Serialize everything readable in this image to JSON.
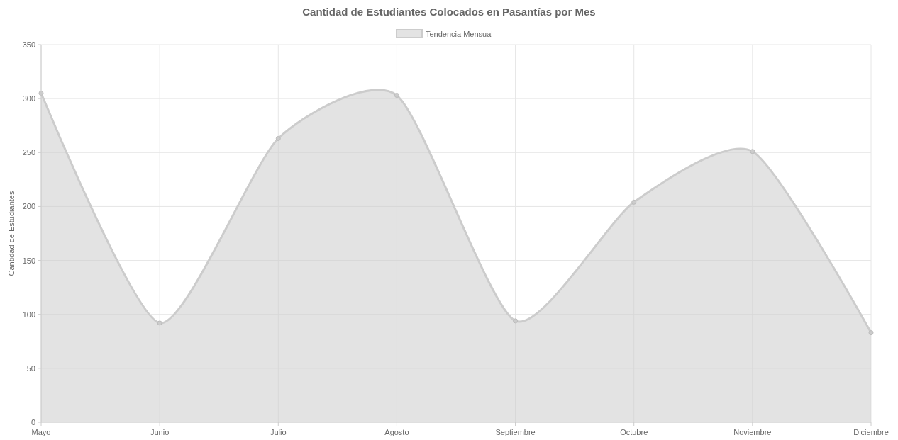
{
  "chart_data": {
    "type": "area",
    "title": "Cantidad de Estudiantes Colocados en Pasantías por Mes",
    "ylabel": "Cantidad de Estudiantes",
    "categories": [
      "Mayo",
      "Junio",
      "Julio",
      "Agosto",
      "Septiembre",
      "Octubre",
      "Noviembre",
      "Diciembre"
    ],
    "series": [
      {
        "name": "Tendencia Mensual",
        "color": "#cccccc",
        "values": [
          305,
          92,
          263,
          303,
          94,
          204,
          251,
          83
        ]
      }
    ],
    "ylim": [
      0,
      350
    ],
    "yticks": [
      0,
      50,
      100,
      150,
      200,
      250,
      300,
      350
    ],
    "grid": true,
    "legend": "top",
    "marker": "circle"
  }
}
